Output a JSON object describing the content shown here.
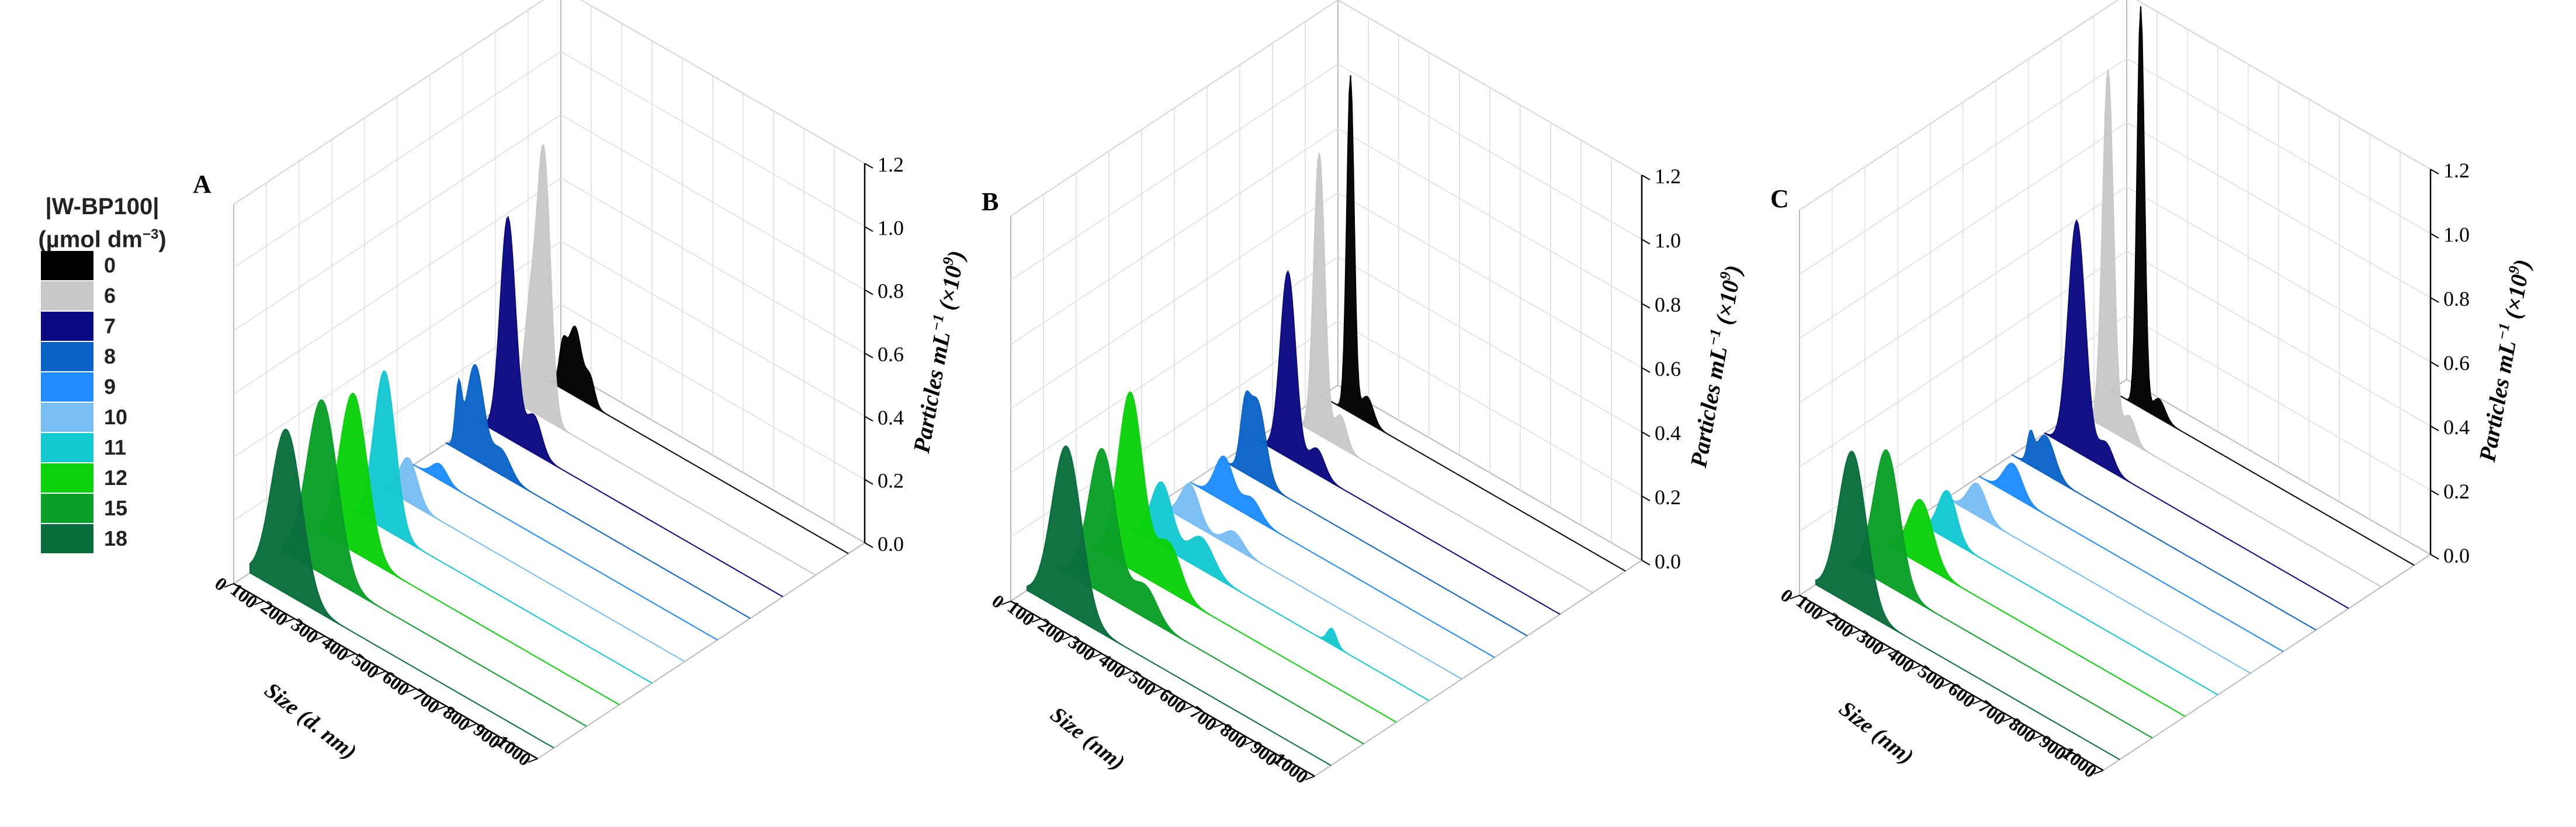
{
  "legend": {
    "title_line1": "|W-BP100|",
    "title_line2": "(µmol dm",
    "title_sup": "−3",
    "title_end": ")",
    "items": [
      {
        "label": "0",
        "color": "#000000"
      },
      {
        "label": "6",
        "color": "#c8c8c8"
      },
      {
        "label": "7",
        "color": "#0a0a82"
      },
      {
        "label": "8",
        "color": "#0a64c8"
      },
      {
        "label": "9",
        "color": "#1e8cff"
      },
      {
        "label": "10",
        "color": "#78bef5"
      },
      {
        "label": "11",
        "color": "#14c8d2"
      },
      {
        "label": "12",
        "color": "#0ad20a"
      },
      {
        "label": "15",
        "color": "#0aa028"
      },
      {
        "label": "18",
        "color": "#0a6e3c"
      }
    ]
  },
  "axes_common": {
    "z_label": "Particles mL",
    "z_label_sup": "−1",
    "z_label_mult": " (×10",
    "z_label_mult_sup": "9",
    "z_label_end": ")",
    "z_ticks": [
      "0.0",
      "0.2",
      "0.4",
      "0.6",
      "0.8",
      "1.0",
      "1.2"
    ],
    "x_ticks": [
      "0",
      "100",
      "200",
      "300",
      "400",
      "500",
      "600",
      "700",
      "800",
      "900",
      "1000"
    ]
  },
  "chart_data": [
    {
      "panel": "A",
      "type": "area",
      "xlabel": "Size (d. nm)",
      "ylabel": "Particles mL−1 (×10^9)",
      "xlim": [
        0,
        1000
      ],
      "zlim": [
        0,
        1.2
      ],
      "series": [
        {
          "name": "0",
          "peaks": [
            [
              100,
              0.22,
              22
            ],
            [
              60,
              0.12,
              12
            ],
            [
              150,
              0.08,
              15
            ]
          ]
        },
        {
          "name": "6",
          "peaks": [
            [
              105,
              0.84,
              22
            ],
            [
              60,
              0.3,
              20
            ]
          ]
        },
        {
          "name": "7",
          "peaks": [
            [
              95,
              0.7,
              25
            ],
            [
              180,
              0.12,
              25
            ]
          ]
        },
        {
          "name": "8",
          "peaks": [
            [
              95,
              0.3,
              28
            ],
            [
              40,
              0.18,
              10
            ],
            [
              180,
              0.08,
              30
            ]
          ]
        },
        {
          "name": "9",
          "peaks": [
            [
              85,
              0.05,
              25
            ]
          ]
        },
        {
          "name": "10",
          "peaks": [
            [
              90,
              0.14,
              30
            ]
          ]
        },
        {
          "name": "11",
          "peaks": [
            [
              120,
              0.5,
              35
            ]
          ]
        },
        {
          "name": "12",
          "peaks": [
            [
              125,
              0.5,
              45
            ]
          ]
        },
        {
          "name": "15",
          "peaks": [
            [
              130,
              0.55,
              50
            ]
          ]
        },
        {
          "name": "18",
          "peaks": [
            [
              120,
              0.52,
              50
            ]
          ]
        }
      ]
    },
    {
      "panel": "B",
      "type": "area",
      "xlabel": "Size (nm)",
      "ylabel": "Particles mL−1 (×10^9)",
      "xlim": [
        0,
        1000
      ],
      "zlim": [
        0,
        1.2
      ],
      "series": [
        {
          "name": "0",
          "peaks": [
            [
              95,
              1.05,
              12
            ],
            [
              150,
              0.08,
              20
            ]
          ]
        },
        {
          "name": "6",
          "peaks": [
            [
              100,
              0.88,
              18
            ],
            [
              170,
              0.1,
              20
            ]
          ]
        },
        {
          "name": "7",
          "peaks": [
            [
              105,
              0.58,
              25
            ],
            [
              200,
              0.08,
              25
            ]
          ]
        },
        {
          "name": "8",
          "peaks": [
            [
              110,
              0.25,
              28
            ],
            [
              70,
              0.15,
              15
            ]
          ]
        },
        {
          "name": "9",
          "peaks": [
            [
              110,
              0.14,
              30
            ],
            [
              200,
              0.06,
              30
            ]
          ]
        },
        {
          "name": "10",
          "peaks": [
            [
              105,
              0.12,
              30
            ],
            [
              250,
              0.05,
              30
            ]
          ]
        },
        {
          "name": "11",
          "peaks": [
            [
              120,
              0.2,
              35
            ],
            [
              250,
              0.1,
              40
            ],
            [
              680,
              0.05,
              15
            ]
          ]
        },
        {
          "name": "12",
          "peaks": [
            [
              125,
              0.55,
              40
            ],
            [
              250,
              0.15,
              40
            ]
          ]
        },
        {
          "name": "15",
          "peaks": [
            [
              140,
              0.45,
              45
            ],
            [
              280,
              0.1,
              40
            ]
          ]
        },
        {
          "name": "18",
          "peaks": [
            [
              130,
              0.52,
              48
            ]
          ]
        }
      ]
    },
    {
      "panel": "C",
      "type": "area",
      "xlabel": "Size (nm)",
      "ylabel": "Particles mL−1 (×10^9)",
      "xlim": [
        0,
        1000
      ],
      "zlim": [
        0,
        1.2
      ],
      "series": [
        {
          "name": "0",
          "peaks": [
            [
              100,
              1.25,
              12
            ],
            [
              160,
              0.06,
              20
            ]
          ]
        },
        {
          "name": "6",
          "peaks": [
            [
              100,
              1.12,
              18
            ],
            [
              170,
              0.08,
              20
            ]
          ]
        },
        {
          "name": "7",
          "peaks": [
            [
              105,
              0.72,
              28
            ],
            [
              200,
              0.08,
              25
            ]
          ]
        },
        {
          "name": "8",
          "peaks": [
            [
              110,
              0.12,
              30
            ],
            [
              60,
              0.08,
              10
            ]
          ]
        },
        {
          "name": "9",
          "peaks": [
            [
              110,
              0.1,
              30
            ]
          ]
        },
        {
          "name": "10",
          "peaks": [
            [
              100,
              0.1,
              30
            ]
          ]
        },
        {
          "name": "11",
          "peaks": [
            [
              110,
              0.15,
              30
            ]
          ]
        },
        {
          "name": "12",
          "peaks": [
            [
              130,
              0.2,
              40
            ]
          ]
        },
        {
          "name": "15",
          "peaks": [
            [
              125,
              0.42,
              42
            ]
          ]
        },
        {
          "name": "18",
          "peaks": [
            [
              120,
              0.48,
              45
            ]
          ]
        }
      ]
    }
  ]
}
